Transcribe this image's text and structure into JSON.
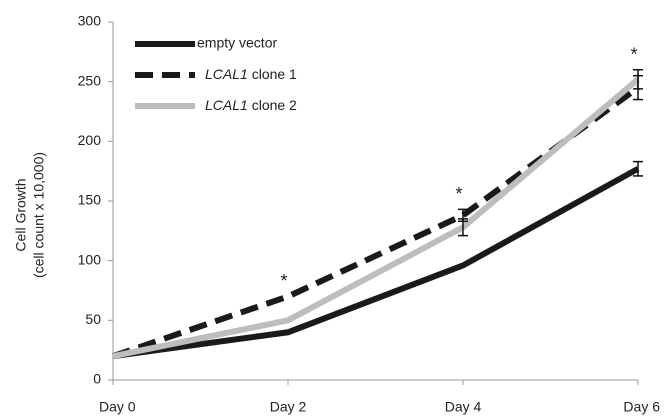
{
  "chart_data": {
    "type": "line",
    "y_label": [
      "Cell Growth",
      "(cell count x 10,000)"
    ],
    "categories": [
      "Day 0",
      "Day 2",
      "Day 4",
      "Day 6"
    ],
    "series": [
      {
        "name": "empty vector",
        "color": "#1a1a1a",
        "dash": false,
        "values": [
          20,
          40,
          96,
          177
        ],
        "errors": [
          null,
          null,
          null,
          6
        ]
      },
      {
        "name": "LCAL1 clone 1",
        "color": "#1a1a1a",
        "dash": true,
        "values": [
          20,
          70,
          138,
          245
        ],
        "errors": [
          null,
          null,
          5,
          10
        ]
      },
      {
        "name": "LCAL1 clone 2",
        "color": "#bdbdbd",
        "dash": false,
        "values": [
          20,
          50,
          128,
          252
        ],
        "errors": [
          null,
          null,
          7,
          8
        ]
      }
    ],
    "annotations": [
      {
        "category": "Day 2",
        "text": "*"
      },
      {
        "category": "Day 4",
        "text": "*"
      },
      {
        "category": "Day 6",
        "text": "*"
      }
    ],
    "ylim": [
      0,
      300
    ],
    "yticks": [
      0,
      50,
      100,
      150,
      200,
      250,
      300
    ],
    "grid": false,
    "legend": "top-left"
  }
}
